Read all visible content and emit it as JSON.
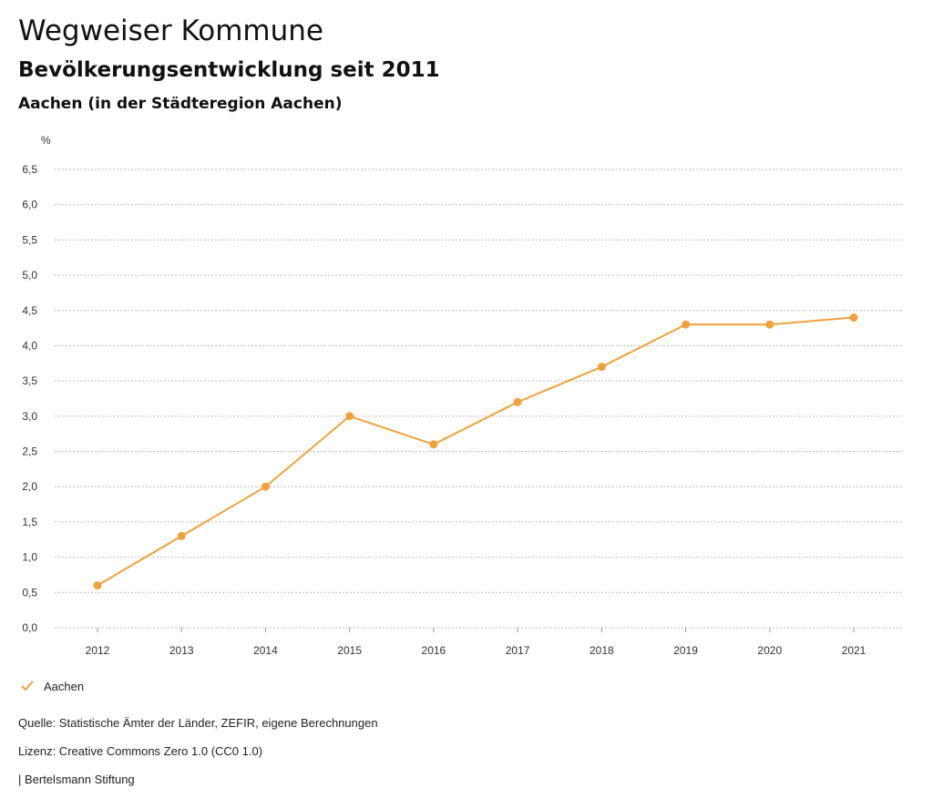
{
  "header": {
    "title": "Wegweiser Kommune",
    "subtitle": "Bevölkerungsentwicklung seit 2011",
    "region": "Aachen (in der Städteregion Aachen)",
    "unit": "%"
  },
  "legend": {
    "label": "Aachen"
  },
  "footer": {
    "source": "Quelle: Statistische Ämter der Länder, ZEFIR, eigene Berechnungen",
    "license": "Lizenz: Creative Commons Zero 1.0 (CC0 1.0)",
    "publisher": "| Bertelsmann Stiftung"
  },
  "colors": {
    "series": "#f0a03c",
    "grid": "#bbbbbb"
  },
  "chart_data": {
    "type": "line",
    "title": "Bevölkerungsentwicklung seit 2011",
    "ylabel": "%",
    "x": [
      "2012",
      "2013",
      "2014",
      "2015",
      "2016",
      "2017",
      "2018",
      "2019",
      "2020",
      "2021"
    ],
    "series": [
      {
        "name": "Aachen",
        "values": [
          0.6,
          1.3,
          2.0,
          3.0,
          2.6,
          3.2,
          3.7,
          4.3,
          4.3,
          4.4
        ]
      }
    ],
    "ylim": [
      0,
      6.5
    ],
    "yticks": [
      "0,0",
      "0,5",
      "1,0",
      "1,5",
      "2,0",
      "2,5",
      "3,0",
      "3,5",
      "4,0",
      "4,5",
      "5,0",
      "5,5",
      "6,0",
      "6,5"
    ],
    "grid": true,
    "legend": "bottom-left"
  }
}
